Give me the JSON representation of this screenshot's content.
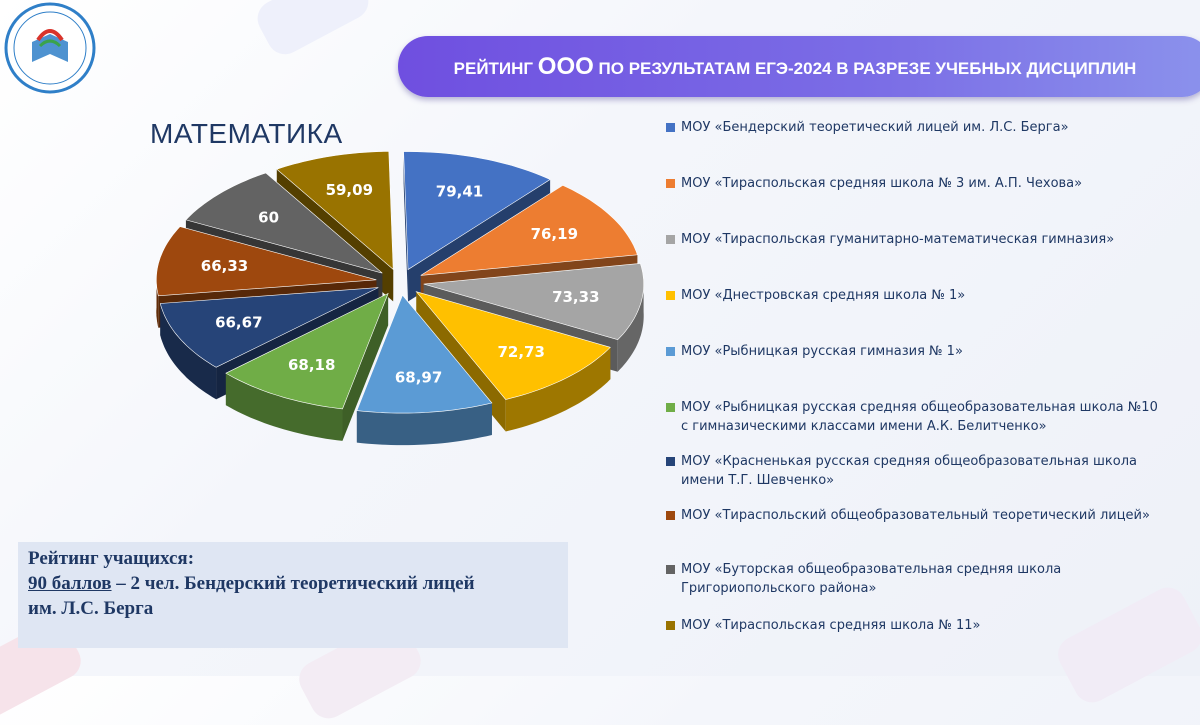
{
  "header": {
    "title_before": "РЕЙТИНГ ",
    "title_big": "ООО",
    "title_after": " ПО РЕЗУЛЬТАТАМ ЕГЭ-2024 В РАЗРЕЗЕ УЧЕБНЫХ ДИСЦИПЛИН"
  },
  "subject": "МАТЕМАТИКА",
  "chart_data": {
    "type": "pie",
    "title": "",
    "series": [
      {
        "label": "МОУ «Бендерский теоретический лицей им. Л.С. Берга»",
        "value": 79.41,
        "display": "79,41",
        "color": "#4472c4"
      },
      {
        "label": "МОУ «Тираспольская средняя школа № 3 им. А.П. Чехова»",
        "value": 76.19,
        "display": "76,19",
        "color": "#ed7d31"
      },
      {
        "label": "МОУ «Тираспольская гуманитарно-математическая гимназия»",
        "value": 73.33,
        "display": "73,33",
        "color": "#a5a5a5"
      },
      {
        "label": "МОУ «Днестровская средняя школа № 1»",
        "value": 72.73,
        "display": "72,73",
        "color": "#ffc000"
      },
      {
        "label": "МОУ «Рыбницкая русская гимназия № 1»",
        "value": 68.97,
        "display": "68,97",
        "color": "#5b9bd5"
      },
      {
        "label": "МОУ «Рыбницкая русская средняя общеобразовательная школа №10 с гимназическими классами имени А.К. Белитченко»",
        "value": 68.18,
        "display": "68,18",
        "color": "#70ad47"
      },
      {
        "label": "МОУ «Красненькая русская средняя общеобразовательная школа имени Т.Г. Шевченко»",
        "value": 66.67,
        "display": "66,67",
        "color": "#264478"
      },
      {
        "label": "МОУ «Тираспольский общеобразовательный теоретический лицей»",
        "value": 66.33,
        "display": "66,33",
        "color": "#9e480e"
      },
      {
        "label": "МОУ «Буторская общеобразовательная средняя школа Григориопольского района»",
        "value": 60,
        "display": "60",
        "color": "#636363"
      },
      {
        "label": "МОУ «Тираспольская средняя школа № 11»",
        "value": 59.09,
        "display": "59,09",
        "color": "#997300"
      }
    ],
    "legend_position": "right"
  },
  "note": {
    "line1": "Рейтинг учащихся:",
    "line2_underlined": "90 баллов",
    "line2_rest": " – 2 чел. Бендерский теоретический лицей",
    "line3": "им. Л.С. Берга"
  },
  "logo": {
    "icon": "ministry-emblem-icon"
  }
}
